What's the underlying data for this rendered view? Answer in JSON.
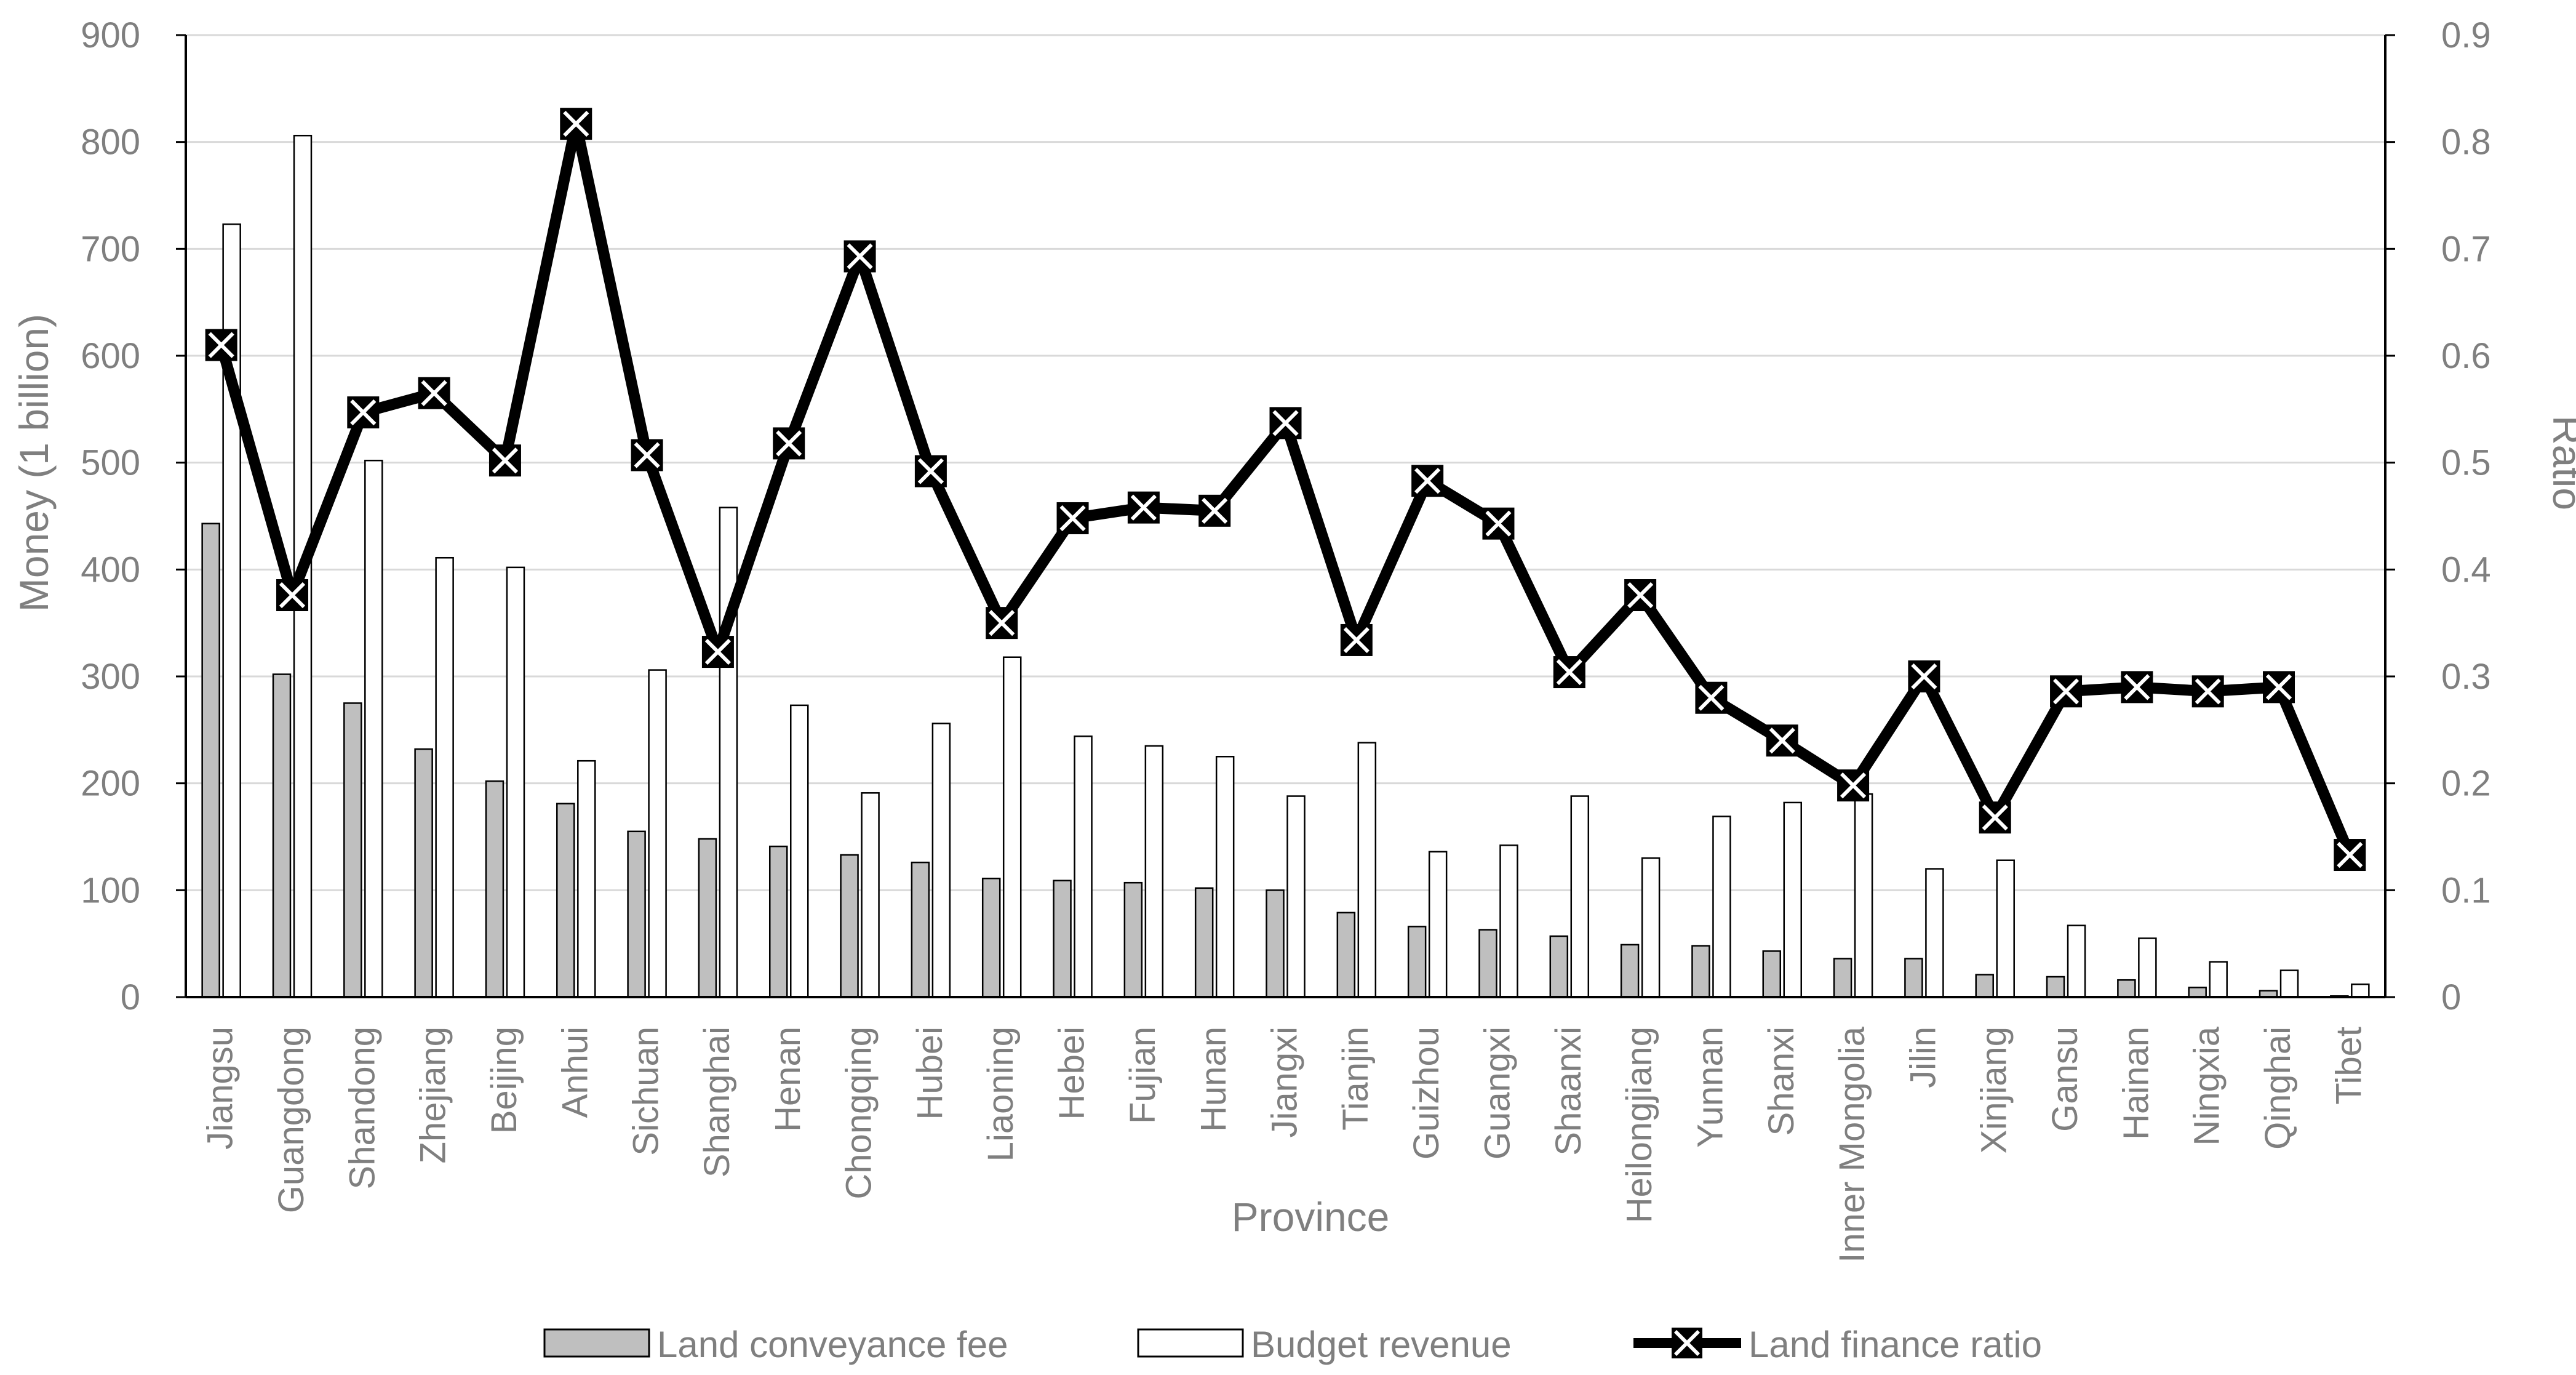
{
  "chart_data": {
    "type": "bar",
    "xlabel": "Province",
    "ylabel": "Money (1 billion)",
    "y2label": "Ratio",
    "ylim": [
      0,
      900
    ],
    "y2lim": [
      0,
      0.9
    ],
    "yticks": [
      "0",
      "100",
      "200",
      "300",
      "400",
      "500",
      "600",
      "700",
      "800",
      "900"
    ],
    "y2ticks": [
      "0",
      "0.1",
      "0.2",
      "0.3",
      "0.4",
      "0.5",
      "0.6",
      "0.7",
      "0.8",
      "0.9"
    ],
    "categories": [
      "Jiangsu",
      "Guangdong",
      "Shandong",
      "Zhejiang",
      "Beijing",
      "Anhui",
      "Sichuan",
      "Shanghai",
      "Henan",
      "Chongqing",
      "Hubei",
      "Liaoning",
      "Hebei",
      "Fujian",
      "Hunan",
      "Jiangxi",
      "Tianjin",
      "Guizhou",
      "Guangxi",
      "Shaanxi",
      "Heilongjiang",
      "Yunnan",
      "Shanxi",
      "Inner Mongolia",
      "Jilin",
      "Xinjiang",
      "Gansu",
      "Hainan",
      "Ningxia",
      "Qinghai",
      "Tibet"
    ],
    "series": [
      {
        "name": "Land conveyance fee",
        "kind": "bar",
        "color": "#bfbfbf",
        "values": [
          443,
          302,
          275,
          232,
          202,
          181,
          155,
          148,
          141,
          133,
          126,
          111,
          109,
          107,
          102,
          100,
          79,
          66,
          63,
          57,
          49,
          48,
          43,
          36,
          36,
          21,
          19,
          16,
          9,
          6,
          1
        ]
      },
      {
        "name": "Budget revenue",
        "kind": "bar",
        "color": "#ffffff",
        "values": [
          723,
          806,
          502,
          411,
          402,
          221,
          306,
          458,
          273,
          191,
          256,
          318,
          244,
          235,
          225,
          188,
          238,
          136,
          142,
          188,
          130,
          169,
          182,
          190,
          120,
          128,
          67,
          55,
          33,
          25,
          12
        ]
      },
      {
        "name": "Land finance ratio",
        "kind": "line",
        "axis": "right",
        "color": "#000000",
        "values": [
          0.61,
          0.376,
          0.547,
          0.565,
          0.502,
          0.817,
          0.507,
          0.323,
          0.518,
          0.693,
          0.492,
          0.35,
          0.448,
          0.458,
          0.455,
          0.537,
          0.334,
          0.483,
          0.443,
          0.304,
          0.376,
          0.28,
          0.24,
          0.198,
          0.3,
          0.168,
          0.286,
          0.29,
          0.286,
          0.29,
          0.133
        ]
      }
    ],
    "legend_position": "bottom-center"
  }
}
